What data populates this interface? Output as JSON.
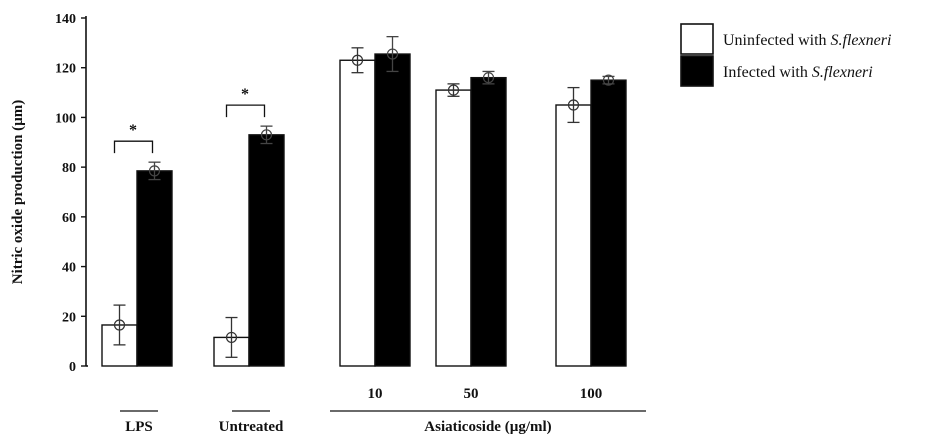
{
  "chart_data": {
    "type": "bar",
    "ylabel": "Nitric oxide production (µm)",
    "ylim": [
      0,
      140
    ],
    "yticks": [
      0,
      20,
      40,
      60,
      80,
      100,
      120,
      140
    ],
    "categories": [
      "LPS",
      "Untreated",
      "10",
      "50",
      "100"
    ],
    "category_groups": [
      {
        "label": "LPS",
        "categories": [
          "LPS"
        ]
      },
      {
        "label": "Untreated",
        "categories": [
          "Untreated"
        ]
      },
      {
        "label": "Asiaticoside (µg/ml)",
        "categories": [
          "10",
          "50",
          "100"
        ]
      }
    ],
    "series": [
      {
        "name": "Uninfected with S.flexneri",
        "color": "#ffffff",
        "values": [
          16.5,
          11.5,
          123,
          111,
          105
        ],
        "errors": [
          8,
          8,
          5,
          2.5,
          7
        ]
      },
      {
        "name": "Infected with S.flexneri",
        "color": "#000000",
        "values": [
          78.5,
          93,
          125.5,
          116,
          115
        ],
        "errors": [
          3.5,
          3.5,
          7,
          2.5,
          1.5
        ]
      }
    ],
    "legend": {
      "position": "top-right",
      "entries": [
        {
          "prefix": "Uninfected with ",
          "italic": "S.flexneri",
          "color": "#ffffff"
        },
        {
          "prefix": "Infected with ",
          "italic": "S.flexneri",
          "color": "#000000"
        }
      ]
    },
    "significance": [
      {
        "category": "LPS",
        "marker": "*"
      },
      {
        "category": "Untreated",
        "marker": "*"
      }
    ],
    "grid": false
  }
}
